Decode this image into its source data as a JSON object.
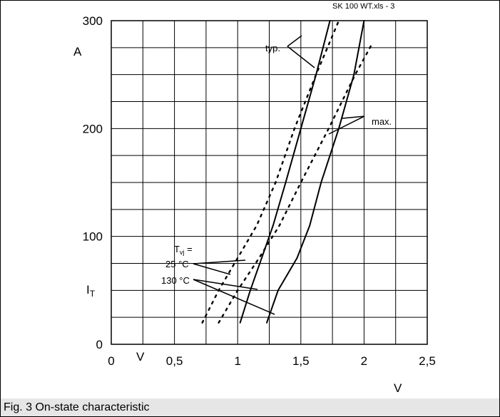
{
  "source_file": "SK 100 WT.xls - 3",
  "caption": "Fig. 3 On-state characteristic",
  "colors": {
    "line": "#000000",
    "grid": "#000000",
    "caption_background": "#e6e6e6"
  },
  "chart_data": {
    "type": "line",
    "title": "",
    "xlabel": "V",
    "ylabel": "I",
    "ylabel_subscript": "T",
    "y_unit": "A",
    "x_unit_left": "V",
    "xlim": [
      0,
      2.5
    ],
    "ylim": [
      0,
      300
    ],
    "xticks": [
      {
        "value": 0,
        "label": "0"
      },
      {
        "value": 0.5,
        "label": "0,5"
      },
      {
        "value": 1,
        "label": "1"
      },
      {
        "value": 1.5,
        "label": "1,5"
      },
      {
        "value": 2,
        "label": "2"
      },
      {
        "value": 2.5,
        "label": "2,5"
      }
    ],
    "yticks": [
      {
        "value": 0,
        "label": "0"
      },
      {
        "value": 100,
        "label": "100"
      },
      {
        "value": 200,
        "label": "200"
      },
      {
        "value": 300,
        "label": "300"
      }
    ],
    "grid": {
      "x_step": 0.25,
      "y_step": 25,
      "enabled": true
    },
    "series": [
      {
        "style": "dashed",
        "points": [
          [
            0.72,
            20
          ],
          [
            0.85,
            50
          ],
          [
            1.0,
            80
          ],
          [
            1.15,
            110
          ],
          [
            1.3,
            150
          ],
          [
            1.45,
            200
          ],
          [
            1.62,
            250
          ],
          [
            1.8,
            300
          ]
        ]
      },
      {
        "style": "solid",
        "points": [
          [
            1.02,
            20
          ],
          [
            1.1,
            50
          ],
          [
            1.19,
            80
          ],
          [
            1.28,
            110
          ],
          [
            1.38,
            150
          ],
          [
            1.5,
            200
          ],
          [
            1.62,
            250
          ],
          [
            1.73,
            300
          ]
        ]
      },
      {
        "style": "dashed",
        "points": [
          [
            0.85,
            20
          ],
          [
            1.0,
            50
          ],
          [
            1.17,
            80
          ],
          [
            1.33,
            110
          ],
          [
            1.5,
            150
          ],
          [
            1.72,
            200
          ],
          [
            1.93,
            250
          ],
          [
            2.07,
            280
          ]
        ]
      },
      {
        "style": "solid",
        "points": [
          [
            1.23,
            20
          ],
          [
            1.32,
            50
          ],
          [
            1.47,
            80
          ],
          [
            1.57,
            110
          ],
          [
            1.66,
            150
          ],
          [
            1.8,
            200
          ],
          [
            1.92,
            250
          ],
          [
            2.0,
            300
          ]
        ]
      }
    ],
    "annotations": {
      "typ": "typ.",
      "max": "max.",
      "tvj_label": "T",
      "tvj_subscript": "vj",
      "tvj_suffix": " =",
      "temp_25": "25 °C",
      "temp_130": "130 °C"
    }
  }
}
